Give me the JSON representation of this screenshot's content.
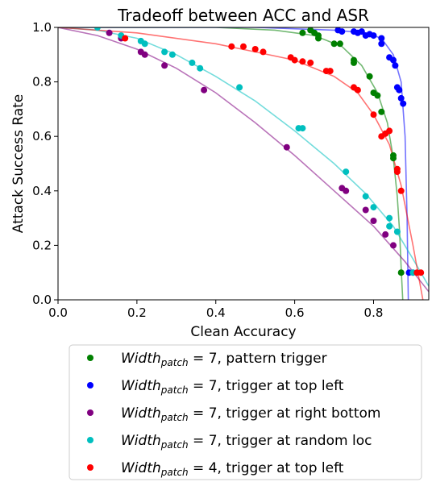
{
  "chart_data": {
    "type": "scatter",
    "title": "Tradeoff between ACC and ASR",
    "xlabel": "Clean Accuracy",
    "ylabel": "Attack Success Rate",
    "xlim": [
      0.0,
      0.94
    ],
    "ylim": [
      0.0,
      1.0
    ],
    "xticks": [
      "0.0",
      "0.2",
      "0.4",
      "0.6",
      "0.8"
    ],
    "yticks": [
      "0.0",
      "0.2",
      "0.4",
      "0.6",
      "0.8",
      "1.0"
    ],
    "grid": false,
    "legend_position": "below",
    "series": [
      {
        "name_math": "Width",
        "name_sub": "patch",
        "name_rest": " = 7, pattern trigger",
        "color": "#008000",
        "points": [
          [
            0.62,
            0.98
          ],
          [
            0.64,
            0.99
          ],
          [
            0.65,
            0.98
          ],
          [
            0.66,
            0.97
          ],
          [
            0.66,
            0.96
          ],
          [
            0.7,
            0.94
          ],
          [
            0.715,
            0.94
          ],
          [
            0.75,
            0.88
          ],
          [
            0.75,
            0.87
          ],
          [
            0.79,
            0.82
          ],
          [
            0.8,
            0.76
          ],
          [
            0.81,
            0.75
          ],
          [
            0.82,
            0.69
          ],
          [
            0.85,
            0.53
          ],
          [
            0.85,
            0.52
          ],
          [
            0.87,
            0.1
          ]
        ],
        "curve": [
          [
            0.0,
            1.0
          ],
          [
            0.4,
            1.0
          ],
          [
            0.55,
            0.99
          ],
          [
            0.65,
            0.97
          ],
          [
            0.72,
            0.93
          ],
          [
            0.77,
            0.86
          ],
          [
            0.81,
            0.76
          ],
          [
            0.835,
            0.65
          ],
          [
            0.85,
            0.52
          ],
          [
            0.86,
            0.38
          ],
          [
            0.866,
            0.25
          ],
          [
            0.87,
            0.12
          ],
          [
            0.874,
            0.0
          ]
        ]
      },
      {
        "name_math": "Width",
        "name_sub": "patch",
        "name_rest": " = 7, trigger at top left",
        "color": "#0000ff",
        "points": [
          [
            0.71,
            0.99
          ],
          [
            0.72,
            0.985
          ],
          [
            0.75,
            0.985
          ],
          [
            0.76,
            0.98
          ],
          [
            0.77,
            0.985
          ],
          [
            0.78,
            0.97
          ],
          [
            0.79,
            0.975
          ],
          [
            0.8,
            0.97
          ],
          [
            0.82,
            0.96
          ],
          [
            0.82,
            0.94
          ],
          [
            0.84,
            0.89
          ],
          [
            0.85,
            0.88
          ],
          [
            0.855,
            0.86
          ],
          [
            0.86,
            0.78
          ],
          [
            0.865,
            0.77
          ],
          [
            0.87,
            0.74
          ],
          [
            0.875,
            0.72
          ],
          [
            0.89,
            0.1
          ]
        ],
        "curve": [
          [
            0.0,
            1.0
          ],
          [
            0.5,
            1.0
          ],
          [
            0.7,
            0.99
          ],
          [
            0.78,
            0.98
          ],
          [
            0.82,
            0.96
          ],
          [
            0.85,
            0.9
          ],
          [
            0.87,
            0.8
          ],
          [
            0.88,
            0.6
          ],
          [
            0.885,
            0.3
          ],
          [
            0.888,
            0.0
          ]
        ]
      },
      {
        "name_math": "Width",
        "name_sub": "patch",
        "name_rest": " = 7, trigger at right bottom",
        "color": "#800080",
        "points": [
          [
            0.13,
            0.98
          ],
          [
            0.16,
            0.96
          ],
          [
            0.21,
            0.91
          ],
          [
            0.22,
            0.9
          ],
          [
            0.27,
            0.86
          ],
          [
            0.37,
            0.77
          ],
          [
            0.58,
            0.56
          ],
          [
            0.72,
            0.41
          ],
          [
            0.73,
            0.4
          ],
          [
            0.78,
            0.33
          ],
          [
            0.8,
            0.29
          ],
          [
            0.83,
            0.24
          ],
          [
            0.85,
            0.2
          ],
          [
            0.9,
            0.1
          ]
        ],
        "curve": [
          [
            0.0,
            1.0
          ],
          [
            0.1,
            0.97
          ],
          [
            0.2,
            0.92
          ],
          [
            0.3,
            0.85
          ],
          [
            0.4,
            0.76
          ],
          [
            0.5,
            0.65
          ],
          [
            0.6,
            0.53
          ],
          [
            0.7,
            0.4
          ],
          [
            0.8,
            0.27
          ],
          [
            0.88,
            0.14
          ],
          [
            0.94,
            0.03
          ]
        ]
      },
      {
        "name_math": "Width",
        "name_sub": "patch",
        "name_rest": " = 7, trigger at random loc",
        "color": "#00bfbf",
        "points": [
          [
            0.1,
            1.0
          ],
          [
            0.16,
            0.97
          ],
          [
            0.21,
            0.95
          ],
          [
            0.22,
            0.94
          ],
          [
            0.27,
            0.91
          ],
          [
            0.29,
            0.9
          ],
          [
            0.34,
            0.87
          ],
          [
            0.36,
            0.85
          ],
          [
            0.46,
            0.78
          ],
          [
            0.61,
            0.63
          ],
          [
            0.62,
            0.63
          ],
          [
            0.73,
            0.47
          ],
          [
            0.78,
            0.38
          ],
          [
            0.8,
            0.34
          ],
          [
            0.84,
            0.3
          ],
          [
            0.84,
            0.27
          ],
          [
            0.86,
            0.25
          ],
          [
            0.9,
            0.1
          ]
        ],
        "curve": [
          [
            0.0,
            1.0
          ],
          [
            0.1,
            0.99
          ],
          [
            0.2,
            0.96
          ],
          [
            0.3,
            0.9
          ],
          [
            0.4,
            0.82
          ],
          [
            0.5,
            0.73
          ],
          [
            0.6,
            0.62
          ],
          [
            0.7,
            0.5
          ],
          [
            0.78,
            0.39
          ],
          [
            0.85,
            0.27
          ],
          [
            0.9,
            0.15
          ],
          [
            0.94,
            0.05
          ]
        ]
      },
      {
        "name_math": "Width",
        "name_sub": "patch",
        "name_rest": " = 4, trigger at top left",
        "color": "#ff0000",
        "points": [
          [
            0.17,
            0.96
          ],
          [
            0.44,
            0.93
          ],
          [
            0.47,
            0.93
          ],
          [
            0.5,
            0.92
          ],
          [
            0.52,
            0.91
          ],
          [
            0.59,
            0.89
          ],
          [
            0.6,
            0.88
          ],
          [
            0.62,
            0.875
          ],
          [
            0.64,
            0.87
          ],
          [
            0.68,
            0.84
          ],
          [
            0.69,
            0.84
          ],
          [
            0.75,
            0.78
          ],
          [
            0.76,
            0.77
          ],
          [
            0.8,
            0.68
          ],
          [
            0.82,
            0.6
          ],
          [
            0.83,
            0.61
          ],
          [
            0.84,
            0.62
          ],
          [
            0.86,
            0.48
          ],
          [
            0.86,
            0.47
          ],
          [
            0.87,
            0.4
          ],
          [
            0.91,
            0.1
          ],
          [
            0.92,
            0.1
          ]
        ],
        "curve": [
          [
            0.0,
            1.0
          ],
          [
            0.2,
            0.98
          ],
          [
            0.4,
            0.94
          ],
          [
            0.5,
            0.91
          ],
          [
            0.6,
            0.88
          ],
          [
            0.7,
            0.82
          ],
          [
            0.76,
            0.76
          ],
          [
            0.8,
            0.68
          ],
          [
            0.84,
            0.57
          ],
          [
            0.87,
            0.42
          ],
          [
            0.9,
            0.2
          ],
          [
            0.925,
            0.0
          ]
        ]
      }
    ]
  }
}
